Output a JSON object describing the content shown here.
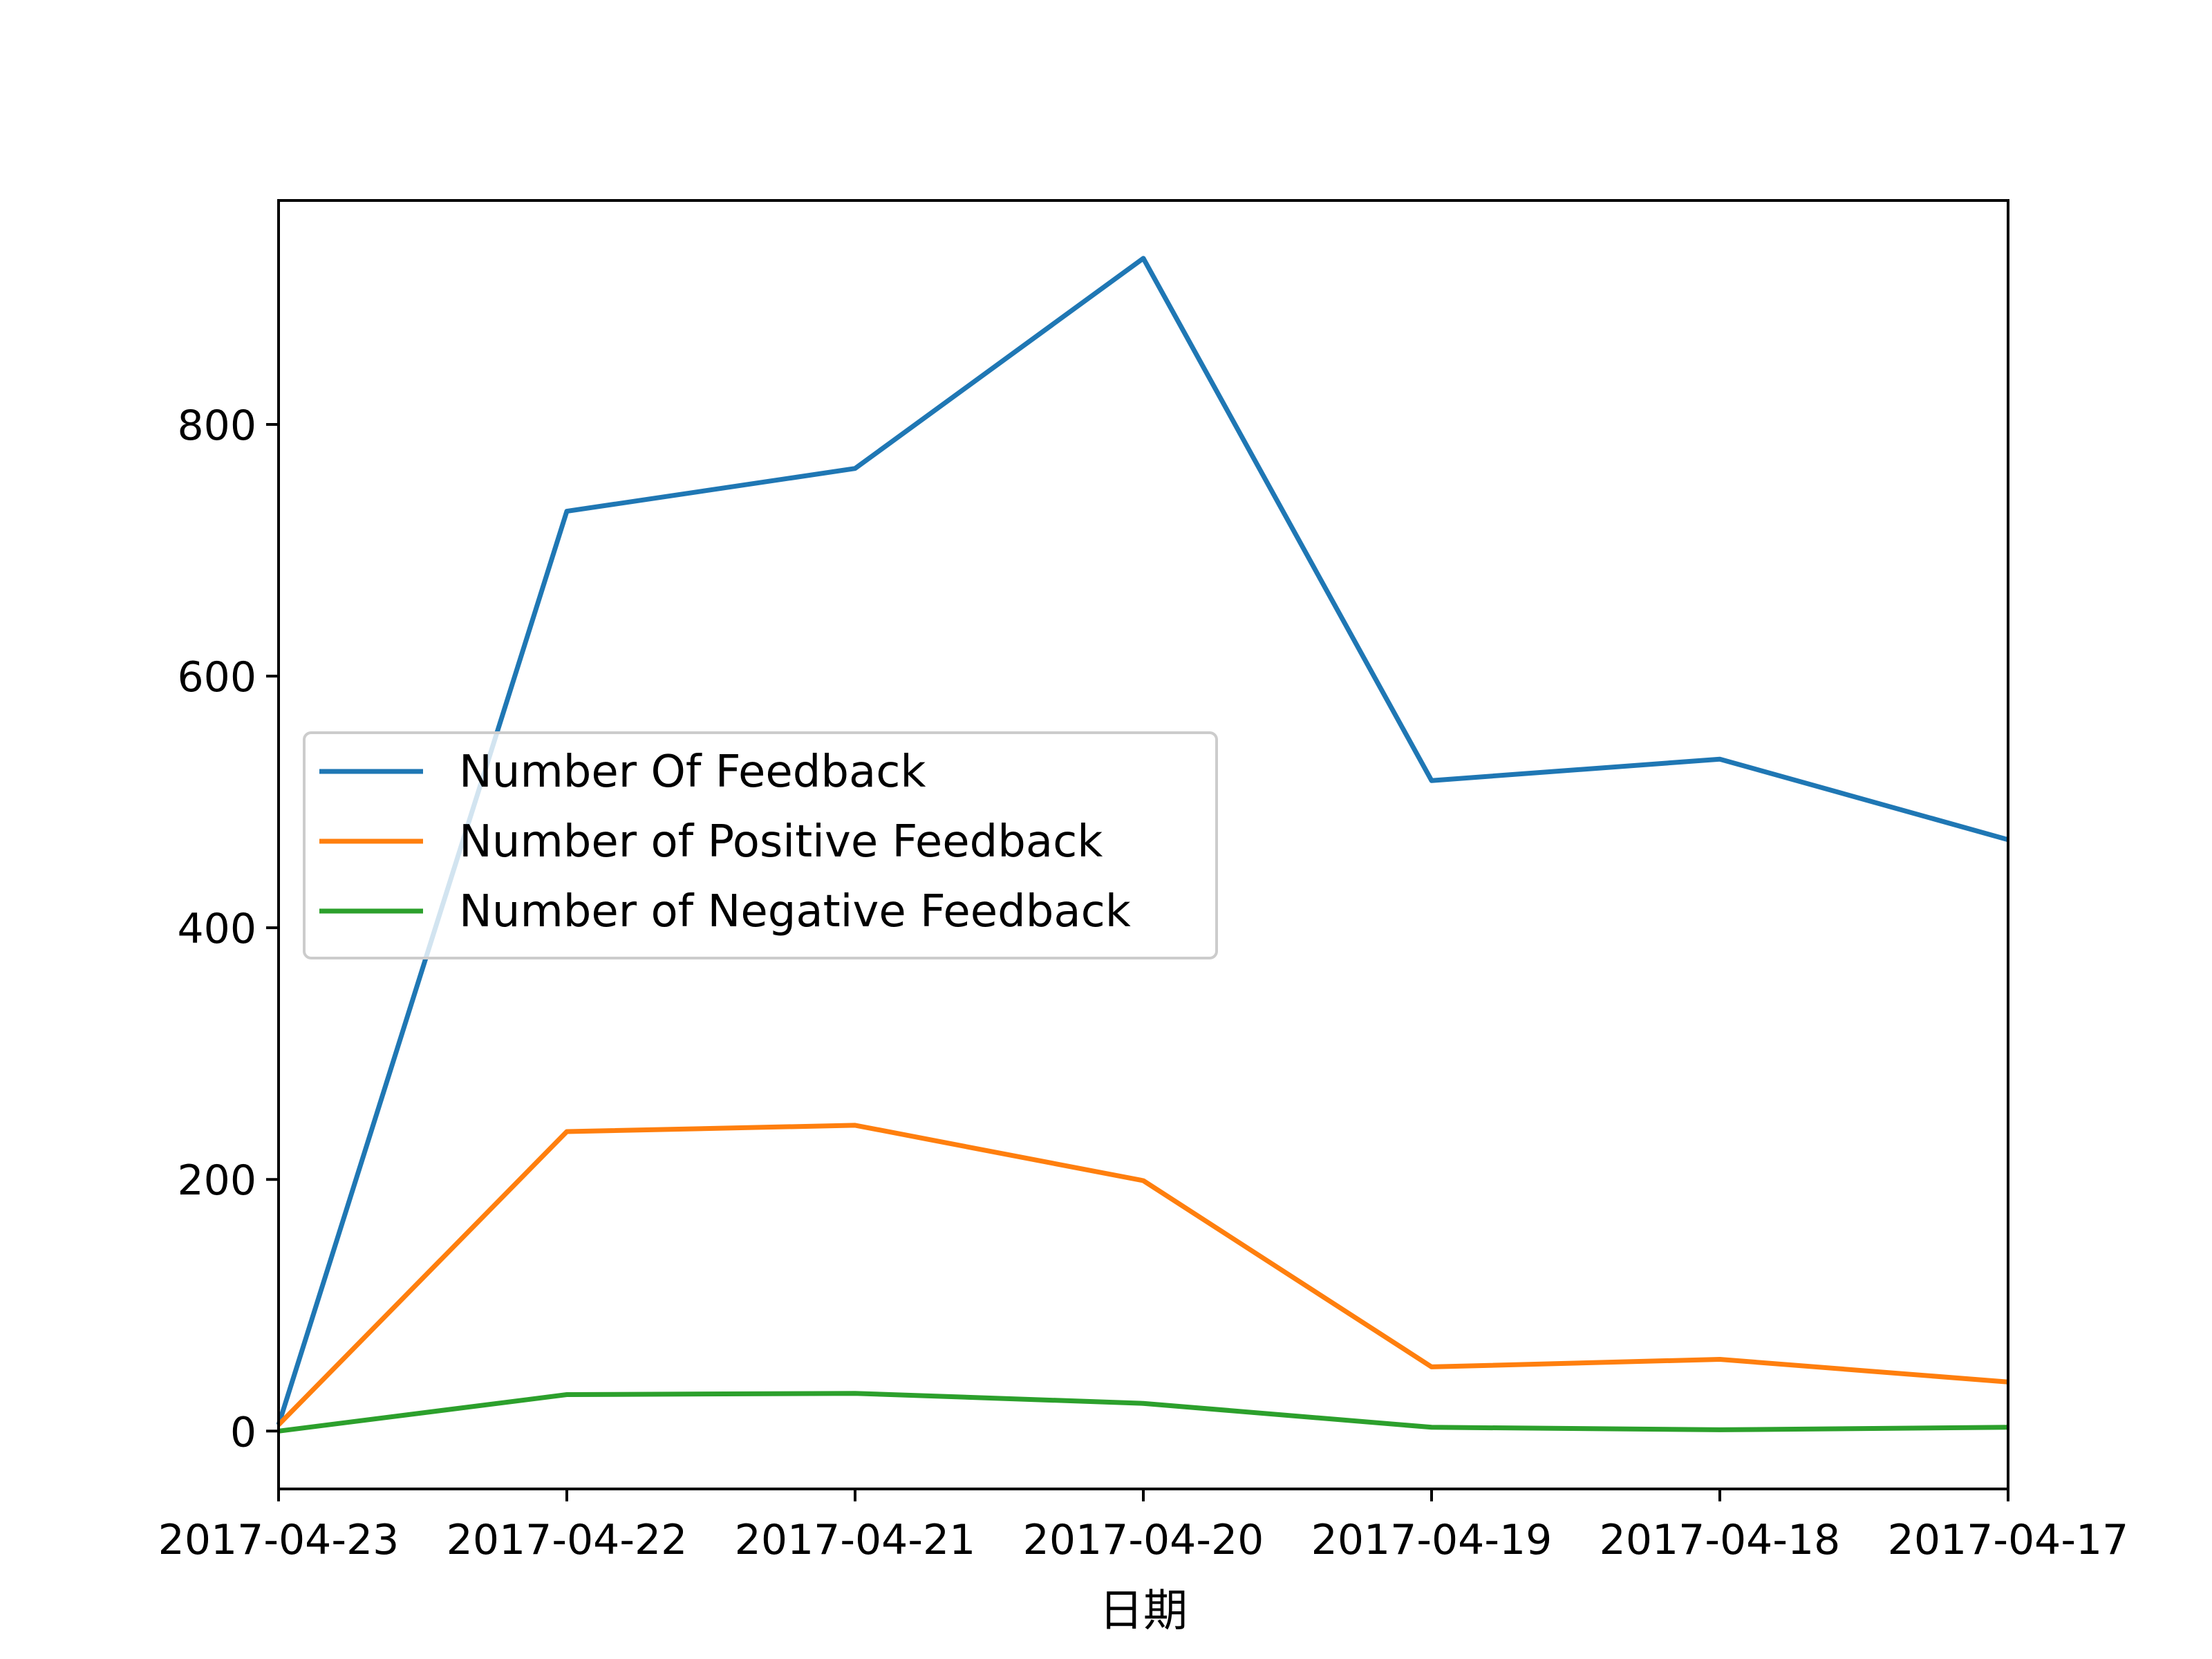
{
  "chart_data": {
    "type": "line",
    "title": "",
    "xlabel": "日期",
    "ylabel": "",
    "categories": [
      "2017-04-23",
      "2017-04-22",
      "2017-04-21",
      "2017-04-20",
      "2017-04-19",
      "2017-04-18",
      "2017-04-17"
    ],
    "series": [
      {
        "name": "Number Of Feedback",
        "color": "#1f77b4",
        "values": [
          5,
          731,
          765,
          932,
          517,
          534,
          470
        ]
      },
      {
        "name": "Number of Positive Feedback",
        "color": "#ff7f0e",
        "values": [
          5,
          238,
          243,
          199,
          51,
          57,
          39
        ]
      },
      {
        "name": "Number of Negative Feedback",
        "color": "#2ca02c",
        "values": [
          0,
          29,
          30,
          22,
          3,
          1,
          3
        ]
      }
    ],
    "ylim": [
      -46,
      978
    ],
    "yticks": [
      "0",
      "200",
      "400",
      "600",
      "800"
    ],
    "grid": false,
    "legend_position": "center-left"
  }
}
